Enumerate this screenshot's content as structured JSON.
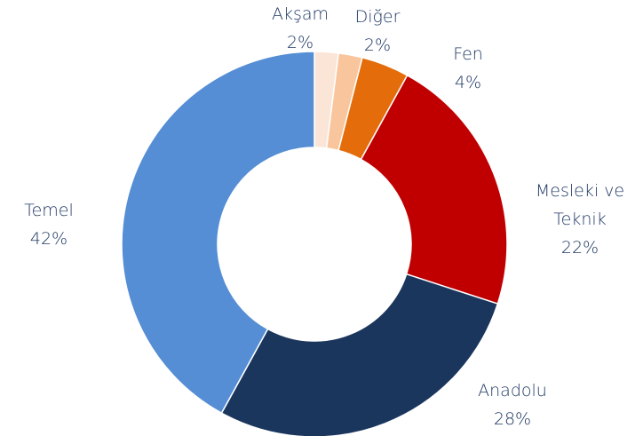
{
  "chart_data": {
    "type": "donut",
    "categories": [
      "Akşam",
      "Diğer",
      "Fen",
      "Mesleki ve Teknik",
      "Anadolu",
      "Temel"
    ],
    "values": [
      2,
      2,
      4,
      22,
      28,
      42
    ],
    "value_labels": [
      "2%",
      "2%",
      "4%",
      "22%",
      "28%",
      "42%"
    ],
    "colors": [
      "#fbe5d6",
      "#f8c59c",
      "#e46c0a",
      "#c00000",
      "#1b365d",
      "#558ed5"
    ]
  }
}
